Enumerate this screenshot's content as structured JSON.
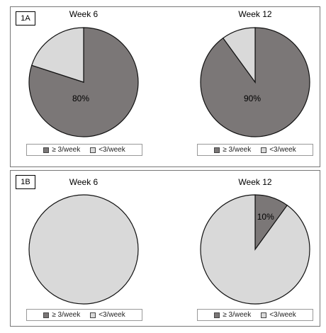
{
  "chart_data": [
    {
      "type": "pie",
      "panel": "1A",
      "title": "Week 6",
      "slices": [
        {
          "label": "≥ 3/week",
          "value": 80,
          "color": "#7b7777"
        },
        {
          "label": "<3/week",
          "value": 20,
          "color": "#d9d9d9"
        }
      ],
      "data_labels": [
        "80%",
        ""
      ]
    },
    {
      "type": "pie",
      "panel": "1A",
      "title": "Week 12",
      "slices": [
        {
          "label": "≥ 3/week",
          "value": 90,
          "color": "#7b7777"
        },
        {
          "label": "<3/week",
          "value": 10,
          "color": "#d9d9d9"
        }
      ],
      "data_labels": [
        "90%",
        ""
      ]
    },
    {
      "type": "pie",
      "panel": "1B",
      "title": "Week 6",
      "slices": [
        {
          "label": "≥ 3/week",
          "value": 0,
          "color": "#7b7777"
        },
        {
          "label": "<3/week",
          "value": 100,
          "color": "#d9d9d9"
        }
      ],
      "data_labels": [
        "",
        ""
      ]
    },
    {
      "type": "pie",
      "panel": "1B",
      "title": "Week 12",
      "slices": [
        {
          "label": "≥ 3/week",
          "value": 10,
          "color": "#7b7777"
        },
        {
          "label": "<3/week",
          "value": 90,
          "color": "#d9d9d9"
        }
      ],
      "data_labels": [
        "10%",
        ""
      ]
    }
  ],
  "panels": {
    "a_label": "1A",
    "b_label": "1B"
  },
  "legend": {
    "high_label": "≥ 3/week",
    "low_label": "<3/week",
    "high_color": "#7b7777",
    "low_color": "#d9d9d9"
  }
}
